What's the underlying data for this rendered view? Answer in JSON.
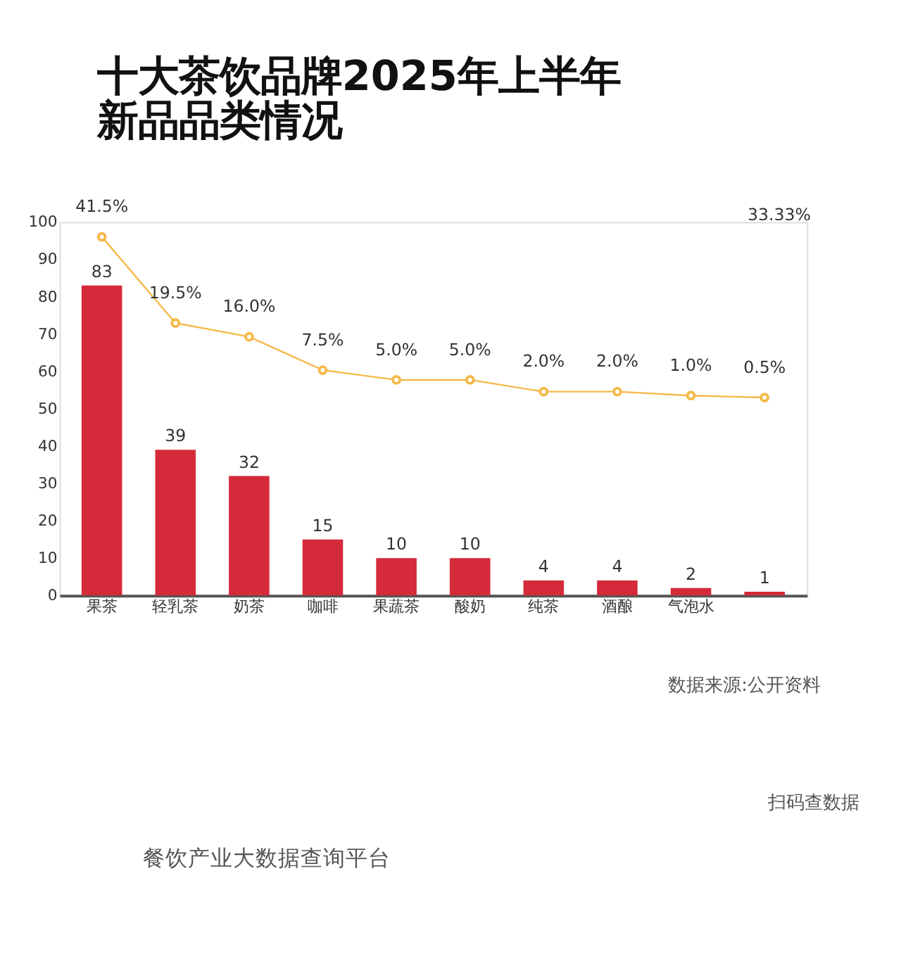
{
  "chart_data": {
    "type": "bar",
    "title": "十大茶饮品牌2025年上半年新品品类情况",
    "categories": [
      "果茶",
      "轻乳茶",
      "奶茶",
      "咖啡",
      "果蔬茶",
      "酸奶",
      "纯茶",
      "酒酿",
      "气泡水",
      null
    ],
    "series": [
      {
        "color": "#d42a3a",
        "values": [
          83,
          39,
          32,
          15,
          10,
          10,
          4,
          4,
          2,
          1
        ]
      },
      {
        "type": "line",
        "axis": "y2",
        "color": "#f5b94a",
        "marker": "circle",
        "values": [
          41.5,
          19.5,
          16.0,
          7.5,
          5.0,
          5.0,
          2.0,
          2.0,
          1.0,
          0.5
        ],
        "value_labels": [
          "41.5%",
          "19.5%",
          "16.0%",
          "7.5%",
          "5.0%",
          "5.0%",
          "2.0%",
          "2.0%",
          "1.0%",
          "0.5%"
        ]
      }
    ],
    "data_labels": true,
    "ylim": [
      0,
      100
    ],
    "yticks": [
      0,
      10,
      20,
      30,
      40,
      50,
      60,
      70,
      80,
      90,
      100
    ],
    "y2lim": [
      -50,
      45.3
    ],
    "tick_labels": "xy",
    "grid": false,
    "annotations": [
      "33.33%",
      "数据来源:公开资料",
      "餐饮产业大数据查询平台",
      "扫码查数据"
    ]
  }
}
